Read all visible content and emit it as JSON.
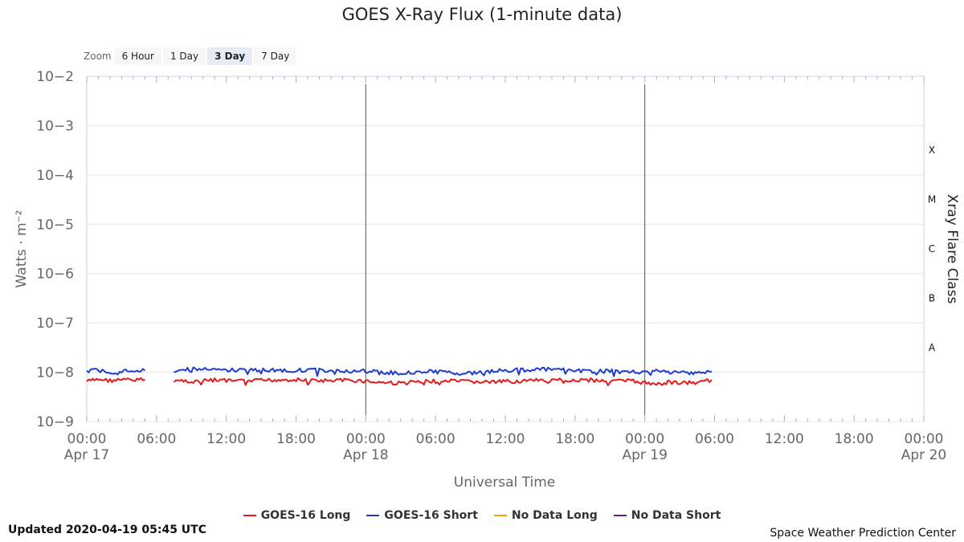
{
  "title": "GOES X-Ray Flux (1-minute data)",
  "zoom": {
    "label": "Zoom",
    "buttons": [
      "6 Hour",
      "1 Day",
      "3 Day",
      "7 Day"
    ],
    "active": "3 Day"
  },
  "chart_data": {
    "type": "line",
    "title": "GOES X-Ray Flux (1-minute data)",
    "xlabel": "Universal Time",
    "ylabel": "Watts · m⁻²",
    "y2label": "Xray Flare Class",
    "yscale": "log",
    "ylim": [
      1e-09,
      0.01
    ],
    "xlim": [
      "2020-04-17 00:00",
      "2020-04-20 00:00"
    ],
    "y_ticks": [
      "10−2",
      "10−3",
      "10−4",
      "10−5",
      "10−6",
      "10−7",
      "10−8",
      "10−9"
    ],
    "x_ticks": [
      {
        "time": "00:00",
        "date": "Apr 17"
      },
      {
        "time": "06:00",
        "date": ""
      },
      {
        "time": "12:00",
        "date": ""
      },
      {
        "time": "18:00",
        "date": ""
      },
      {
        "time": "00:00",
        "date": "Apr 18"
      },
      {
        "time": "06:00",
        "date": ""
      },
      {
        "time": "12:00",
        "date": ""
      },
      {
        "time": "18:00",
        "date": ""
      },
      {
        "time": "00:00",
        "date": "Apr 19"
      },
      {
        "time": "06:00",
        "date": ""
      },
      {
        "time": "12:00",
        "date": ""
      },
      {
        "time": "18:00",
        "date": ""
      },
      {
        "time": "00:00",
        "date": "Apr 20"
      }
    ],
    "flare_classes": [
      {
        "label": "X",
        "value": 0.0001
      },
      {
        "label": "M",
        "value": 1e-05
      },
      {
        "label": "C",
        "value": 1e-06
      },
      {
        "label": "B",
        "value": 1e-07
      },
      {
        "label": "A",
        "value": 1e-08
      }
    ],
    "day_markers": [
      "2020-04-18 00:00",
      "2020-04-19 00:00"
    ],
    "grid": true,
    "legend_position": "bottom-center",
    "series": [
      {
        "name": "GOES-16 Long",
        "color": "#e41a1c",
        "segments": [
          {
            "x": [
              "2020-04-17 00:00",
              "2020-04-17 01:00",
              "2020-04-17 02:00",
              "2020-04-17 03:00",
              "2020-04-17 04:00",
              "2020-04-17 05:00"
            ],
            "y": [
              6.5e-09,
              7.2e-09,
              6.8e-09,
              7e-09,
              6.9e-09,
              7.1e-09
            ]
          },
          {
            "x": [
              "2020-04-17 07:30",
              "2020-04-17 09:00",
              "2020-04-17 11:00",
              "2020-04-17 13:00",
              "2020-04-17 15:00",
              "2020-04-17 17:00",
              "2020-04-17 19:00",
              "2020-04-17 21:00",
              "2020-04-17 23:00",
              "2020-04-18 01:00",
              "2020-04-18 03:00",
              "2020-04-18 05:00",
              "2020-04-18 07:00",
              "2020-04-18 09:00",
              "2020-04-18 11:00",
              "2020-04-18 13:00",
              "2020-04-18 15:00",
              "2020-04-18 17:00",
              "2020-04-18 19:00",
              "2020-04-18 21:00",
              "2020-04-18 23:00",
              "2020-04-19 00:30",
              "2020-04-19 02:00",
              "2020-04-19 03:30",
              "2020-04-19 05:00",
              "2020-04-19 05:45"
            ],
            "y": [
              6.8e-09,
              6.6e-09,
              6.9e-09,
              6.5e-09,
              6.8e-09,
              7.1e-09,
              6.9e-09,
              6.7e-09,
              6.9e-09,
              6.3e-09,
              6e-09,
              6.5e-09,
              6.6e-09,
              6.4e-09,
              6.3e-09,
              6.6e-09,
              6.8e-09,
              7e-09,
              6.9e-09,
              6.8e-09,
              6.6e-09,
              5.8e-09,
              6.3e-09,
              6e-09,
              6.3e-09,
              7e-09
            ]
          }
        ]
      },
      {
        "name": "GOES-16 Short",
        "color": "#1f3ccf",
        "segments": [
          {
            "x": [
              "2020-04-17 00:00",
              "2020-04-17 01:00",
              "2020-04-17 02:00",
              "2020-04-17 03:00",
              "2020-04-17 04:00",
              "2020-04-17 05:00"
            ],
            "y": [
              1.05e-08,
              1.1e-08,
              1e-08,
              1.05e-08,
              1.1e-08,
              1.08e-08
            ]
          },
          {
            "x": [
              "2020-04-17 07:30",
              "2020-04-17 09:00",
              "2020-04-17 11:00",
              "2020-04-17 13:00",
              "2020-04-17 15:00",
              "2020-04-17 17:00",
              "2020-04-17 19:00",
              "2020-04-17 21:00",
              "2020-04-17 23:00",
              "2020-04-18 01:00",
              "2020-04-18 03:00",
              "2020-04-18 05:00",
              "2020-04-18 07:00",
              "2020-04-18 09:00",
              "2020-04-18 11:00",
              "2020-04-18 13:00",
              "2020-04-18 15:00",
              "2020-04-18 17:00",
              "2020-04-18 19:00",
              "2020-04-18 21:00",
              "2020-04-18 23:00",
              "2020-04-19 00:30",
              "2020-04-19 02:00",
              "2020-04-19 03:30",
              "2020-04-19 05:00",
              "2020-04-19 05:45"
            ],
            "y": [
              1.08e-08,
              1.15e-08,
              1.12e-08,
              1.1e-08,
              1.12e-08,
              1.08e-08,
              1.1e-08,
              1.08e-08,
              1.05e-08,
              1.02e-08,
              9.5e-09,
              1.05e-08,
              1e-08,
              9.5e-09,
              1.05e-08,
              1.1e-08,
              1.15e-08,
              1.1e-08,
              1.05e-08,
              1.05e-08,
              1e-08,
              1.05e-08,
              1e-08,
              9.8e-09,
              1e-08,
              1.02e-08
            ]
          }
        ]
      },
      {
        "name": "No Data Long",
        "color": "#f0a30a",
        "segments": []
      },
      {
        "name": "No Data Short",
        "color": "#6a1b9a",
        "segments": []
      }
    ]
  },
  "updated": "Updated 2020-04-19 05:45 UTC",
  "credit": "Space Weather Prediction Center"
}
